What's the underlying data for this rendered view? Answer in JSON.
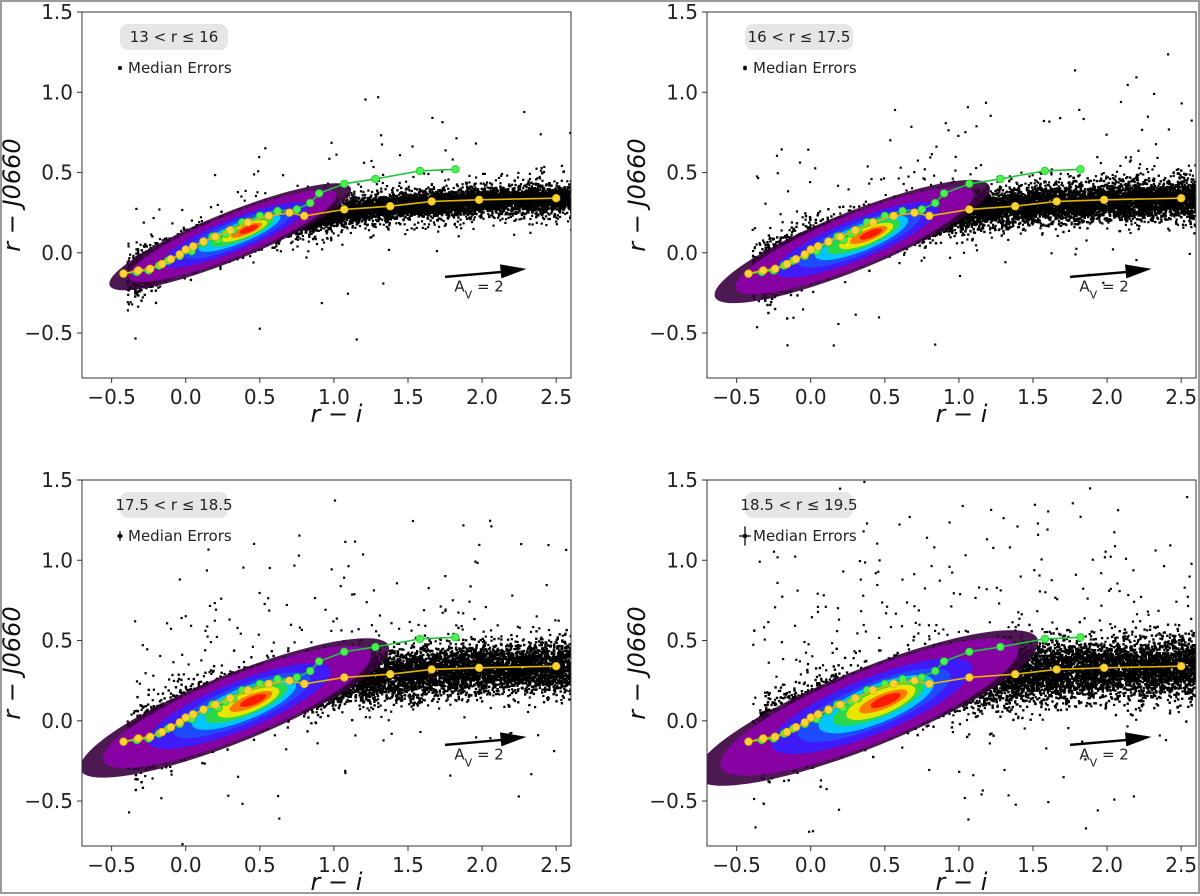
{
  "figure": {
    "colors": {
      "points": "#000000",
      "density_low": "#8b00a8",
      "density_mid": "#1f4bff",
      "density_high": "#ff1a00",
      "green_track": "#22c43a",
      "green_marker": "#4cf04c",
      "yellow_track": "#e0b400",
      "yellow_marker": "#ffd23a",
      "label_box": "#e6e6e6",
      "frame": "#9a9a9a"
    }
  },
  "chart_data": [
    {
      "type": "scatter",
      "panel": "top-left",
      "title": "",
      "xlabel": "r − i",
      "ylabel": "r − J0660",
      "xlim": [
        -0.7,
        2.6
      ],
      "ylim": [
        -0.78,
        1.5
      ],
      "xticks": [
        "−0.5",
        "0.0",
        "0.5",
        "1.0",
        "1.5",
        "2.0",
        "2.5"
      ],
      "yticks": [
        "−0.5",
        "0.0",
        "0.5",
        "1.0",
        "1.5"
      ],
      "magnitude_label": "13 < r ≤ 16",
      "legend": {
        "label": "Median Errors",
        "xerr": 0.004,
        "yerr": 0.004,
        "placement": "top-left"
      },
      "reddening_vector": {
        "label": "A_V = 2",
        "from": [
          1.75,
          -0.15
        ],
        "to": [
          2.3,
          -0.1
        ]
      },
      "scatter": {
        "center": [
          0.3,
          0.05
        ],
        "spread": 0.25
      },
      "density": {
        "peak": [
          0.3,
          0.1
        ]
      },
      "series": [
        {
          "name": "",
          "color": "green",
          "x": [
            -0.42,
            -0.33,
            -0.25,
            -0.18,
            -0.12,
            -0.04,
            0.04,
            0.12,
            0.18,
            0.22,
            0.27,
            0.32,
            0.38,
            0.5,
            0.62,
            0.75,
            0.84,
            0.9,
            1.07,
            1.28,
            1.58,
            1.82
          ],
          "y": [
            -0.13,
            -0.12,
            -0.11,
            -0.08,
            -0.05,
            -0.02,
            0.01,
            0.06,
            0.1,
            0.08,
            0.12,
            0.14,
            0.19,
            0.23,
            0.26,
            0.27,
            0.31,
            0.37,
            0.43,
            0.46,
            0.51,
            0.52
          ]
        },
        {
          "name": "",
          "color": "yellow",
          "x": [
            -0.42,
            -0.32,
            -0.24,
            -0.16,
            -0.1,
            -0.04,
            0.0,
            0.05,
            0.12,
            0.2,
            0.3,
            0.42,
            0.56,
            0.7,
            0.8,
            1.07,
            1.38,
            1.66,
            1.98,
            2.5
          ],
          "y": [
            -0.13,
            -0.11,
            -0.1,
            -0.07,
            -0.04,
            -0.01,
            0.02,
            0.04,
            0.07,
            0.1,
            0.14,
            0.19,
            0.23,
            0.25,
            0.23,
            0.27,
            0.29,
            0.32,
            0.33,
            0.34
          ]
        }
      ]
    },
    {
      "type": "scatter",
      "panel": "top-right",
      "title": "",
      "xlabel": "r − i",
      "ylabel": "r − J0660",
      "xlim": [
        -0.7,
        2.6
      ],
      "ylim": [
        -0.78,
        1.5
      ],
      "xticks": [
        "−0.5",
        "0.0",
        "0.5",
        "1.0",
        "1.5",
        "2.0",
        "2.5"
      ],
      "yticks": [
        "−0.5",
        "0.0",
        "0.5",
        "1.0",
        "1.5"
      ],
      "magnitude_label": "16 < r ≤ 17.5",
      "legend": {
        "label": "Median Errors",
        "xerr": 0.01,
        "yerr": 0.015,
        "placement": "top-left"
      },
      "reddening_vector": {
        "label": "A_V = 2",
        "from": [
          1.75,
          -0.15
        ],
        "to": [
          2.3,
          -0.1
        ]
      },
      "scatter": {
        "center": [
          0.35,
          0.1
        ],
        "spread": 0.3
      },
      "density": {
        "peak": [
          0.28,
          0.07
        ]
      },
      "series": [
        {
          "name": "",
          "color": "green",
          "x": [
            -0.42,
            -0.33,
            -0.25,
            -0.18,
            -0.12,
            -0.04,
            0.04,
            0.12,
            0.18,
            0.22,
            0.27,
            0.32,
            0.38,
            0.5,
            0.62,
            0.75,
            0.84,
            0.9,
            1.07,
            1.28,
            1.58,
            1.82
          ],
          "y": [
            -0.13,
            -0.12,
            -0.11,
            -0.08,
            -0.05,
            -0.02,
            0.01,
            0.06,
            0.1,
            0.08,
            0.12,
            0.14,
            0.19,
            0.23,
            0.26,
            0.27,
            0.31,
            0.37,
            0.43,
            0.46,
            0.51,
            0.52
          ]
        },
        {
          "name": "",
          "color": "yellow",
          "x": [
            -0.42,
            -0.32,
            -0.24,
            -0.16,
            -0.1,
            -0.04,
            0.0,
            0.05,
            0.12,
            0.2,
            0.3,
            0.42,
            0.56,
            0.7,
            0.8,
            1.07,
            1.38,
            1.66,
            1.98,
            2.5
          ],
          "y": [
            -0.13,
            -0.11,
            -0.1,
            -0.07,
            -0.04,
            -0.01,
            0.02,
            0.04,
            0.07,
            0.1,
            0.14,
            0.19,
            0.23,
            0.25,
            0.23,
            0.27,
            0.29,
            0.32,
            0.33,
            0.34
          ]
        }
      ]
    },
    {
      "type": "scatter",
      "panel": "bottom-left",
      "title": "",
      "xlabel": "r − i",
      "ylabel": "r − J0660",
      "xlim": [
        -0.7,
        2.6
      ],
      "ylim": [
        -0.78,
        1.5
      ],
      "xticks": [
        "−0.5",
        "0.0",
        "0.5",
        "1.0",
        "1.5",
        "2.0",
        "2.5"
      ],
      "yticks": [
        "−0.5",
        "0.0",
        "0.5",
        "1.0",
        "1.5"
      ],
      "magnitude_label": "17.5 < r ≤ 18.5",
      "legend": {
        "label": "Median Errors",
        "xerr": 0.02,
        "yerr": 0.03,
        "placement": "top-left"
      },
      "reddening_vector": {
        "label": "A_V = 2",
        "from": [
          1.75,
          -0.15
        ],
        "to": [
          2.3,
          -0.1
        ]
      },
      "scatter": {
        "center": [
          0.4,
          0.12
        ],
        "spread": 0.35
      },
      "density": {
        "peak": [
          0.33,
          0.08
        ]
      },
      "series": [
        {
          "name": "",
          "color": "green",
          "x": [
            -0.42,
            -0.33,
            -0.25,
            -0.18,
            -0.12,
            -0.04,
            0.04,
            0.12,
            0.18,
            0.22,
            0.27,
            0.32,
            0.38,
            0.5,
            0.62,
            0.75,
            0.84,
            0.9,
            1.07,
            1.28,
            1.58,
            1.82
          ],
          "y": [
            -0.13,
            -0.12,
            -0.11,
            -0.08,
            -0.05,
            -0.02,
            0.01,
            0.06,
            0.1,
            0.08,
            0.12,
            0.14,
            0.19,
            0.23,
            0.26,
            0.27,
            0.31,
            0.37,
            0.43,
            0.46,
            0.51,
            0.52
          ]
        },
        {
          "name": "",
          "color": "yellow",
          "x": [
            -0.42,
            -0.32,
            -0.24,
            -0.16,
            -0.1,
            -0.04,
            0.0,
            0.05,
            0.12,
            0.2,
            0.3,
            0.42,
            0.56,
            0.7,
            0.8,
            1.07,
            1.38,
            1.66,
            1.98,
            2.5
          ],
          "y": [
            -0.13,
            -0.11,
            -0.1,
            -0.07,
            -0.04,
            -0.01,
            0.02,
            0.04,
            0.07,
            0.1,
            0.14,
            0.19,
            0.23,
            0.25,
            0.23,
            0.27,
            0.29,
            0.32,
            0.33,
            0.34
          ]
        }
      ]
    },
    {
      "type": "scatter",
      "panel": "bottom-right",
      "title": "",
      "xlabel": "r − i",
      "ylabel": "r − J0660",
      "xlim": [
        -0.7,
        2.6
      ],
      "ylim": [
        -0.78,
        1.5
      ],
      "xticks": [
        "−0.5",
        "0.0",
        "0.5",
        "1.0",
        "1.5",
        "2.0",
        "2.5"
      ],
      "yticks": [
        "−0.5",
        "0.0",
        "0.5",
        "1.0",
        "1.5"
      ],
      "magnitude_label": "18.5 < r ≤ 19.5",
      "legend": {
        "label": "Median Errors",
        "xerr": 0.04,
        "yerr": 0.06,
        "placement": "top-left"
      },
      "reddening_vector": {
        "label": "A_V = 2",
        "from": [
          1.75,
          -0.15
        ],
        "to": [
          2.3,
          -0.1
        ]
      },
      "scatter": {
        "center": [
          0.5,
          0.15
        ],
        "spread": 0.4
      },
      "density": {
        "peak": [
          0.38,
          0.08
        ]
      },
      "series": [
        {
          "name": "",
          "color": "green",
          "x": [
            -0.42,
            -0.33,
            -0.25,
            -0.18,
            -0.12,
            -0.04,
            0.04,
            0.12,
            0.18,
            0.22,
            0.27,
            0.32,
            0.38,
            0.5,
            0.62,
            0.75,
            0.84,
            0.9,
            1.07,
            1.28,
            1.58,
            1.82
          ],
          "y": [
            -0.13,
            -0.12,
            -0.11,
            -0.08,
            -0.05,
            -0.02,
            0.01,
            0.06,
            0.1,
            0.08,
            0.12,
            0.14,
            0.19,
            0.23,
            0.26,
            0.27,
            0.31,
            0.37,
            0.43,
            0.46,
            0.51,
            0.52
          ]
        },
        {
          "name": "",
          "color": "yellow",
          "x": [
            -0.42,
            -0.32,
            -0.24,
            -0.16,
            -0.1,
            -0.04,
            0.0,
            0.05,
            0.12,
            0.2,
            0.3,
            0.42,
            0.56,
            0.7,
            0.8,
            1.07,
            1.38,
            1.66,
            1.98,
            2.5
          ],
          "y": [
            -0.13,
            -0.11,
            -0.1,
            -0.07,
            -0.04,
            -0.01,
            0.02,
            0.04,
            0.07,
            0.1,
            0.14,
            0.19,
            0.23,
            0.25,
            0.23,
            0.27,
            0.29,
            0.32,
            0.33,
            0.34
          ]
        }
      ]
    }
  ]
}
